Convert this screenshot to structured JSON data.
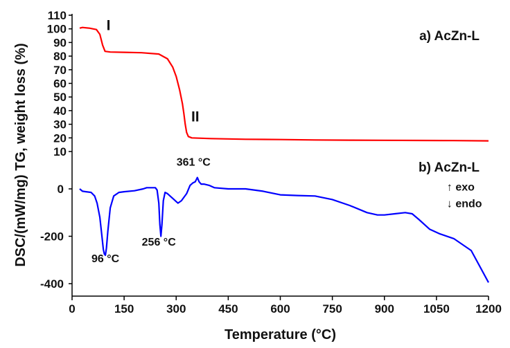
{
  "chart_data": {
    "type": "line",
    "xlabel": "Temperature (°C)",
    "ylabel": "DSC/(mW/mg) TG, weight loss (%)",
    "xlim": [
      0,
      1200
    ],
    "x_ticks": [
      "0",
      "150",
      "300",
      "450",
      "600",
      "750",
      "900",
      "1050",
      "1200"
    ],
    "grid": false,
    "tg": {
      "label": "a) AcZn-L",
      "color": "#ff0000",
      "ylim": [
        10,
        110
      ],
      "y_ticks": [
        "110",
        "100",
        "90",
        "80",
        "70",
        "60",
        "50",
        "40",
        "30",
        "20",
        "10"
      ],
      "x": [
        22,
        30,
        50,
        70,
        80,
        88,
        95,
        110,
        150,
        200,
        250,
        275,
        290,
        300,
        310,
        318,
        322,
        326,
        330,
        335,
        345,
        400,
        500,
        600,
        700,
        800,
        900,
        1000,
        1100,
        1200
      ],
      "y": [
        100.5,
        101,
        100.5,
        99.5,
        96,
        88,
        83.5,
        83,
        82.8,
        82.5,
        81.5,
        78,
        72,
        65,
        55,
        45,
        38,
        30,
        24,
        21,
        20,
        19.5,
        19,
        18.8,
        18.5,
        18.3,
        18.2,
        18.1,
        18,
        17.8
      ],
      "annotations": [
        {
          "text": "I",
          "x": 105,
          "y": 99
        },
        {
          "text": "II",
          "x": 355,
          "y": 32
        }
      ]
    },
    "dsc": {
      "label": "b) AcZn-L",
      "color": "#0000ff",
      "ylim": [
        -410,
        60
      ],
      "y_ticks": [
        "0",
        "-200",
        "-400"
      ],
      "x": [
        22,
        30,
        40,
        55,
        65,
        72,
        80,
        86,
        90,
        93,
        96,
        99,
        103,
        110,
        120,
        135,
        150,
        180,
        205,
        215,
        230,
        240,
        245,
        250,
        253,
        256,
        259,
        263,
        268,
        275,
        290,
        305,
        315,
        330,
        340,
        348,
        355,
        361,
        366,
        372,
        380,
        395,
        410,
        450,
        500,
        550,
        600,
        650,
        700,
        750,
        800,
        850,
        880,
        900,
        930,
        960,
        980,
        1000,
        1030,
        1060,
        1100,
        1150,
        1200
      ],
      "y": [
        0,
        -10,
        -12,
        -15,
        -30,
        -60,
        -120,
        -200,
        -255,
        -275,
        -280,
        -250,
        -180,
        -80,
        -30,
        -15,
        -12,
        -8,
        0,
        5,
        5,
        5,
        -5,
        -60,
        -150,
        -200,
        -150,
        -50,
        -15,
        -20,
        -40,
        -60,
        -50,
        -20,
        15,
        25,
        30,
        48,
        30,
        20,
        20,
        15,
        5,
        0,
        0,
        -10,
        -25,
        -28,
        -30,
        -45,
        -70,
        -100,
        -110,
        -110,
        -105,
        -100,
        -105,
        -130,
        -170,
        -190,
        -210,
        -260,
        -395
      ],
      "annotations": [
        {
          "text": "96 °C",
          "x": 96,
          "y": -310
        },
        {
          "text": "256 °C",
          "x": 250,
          "y": -240
        },
        {
          "text": "361 °C",
          "x": 350,
          "y": 98
        },
        {
          "text": "↑ exo",
          "x": 1080,
          "y": -8
        },
        {
          "text": "↓ endo",
          "x": 1080,
          "y": -78
        }
      ]
    }
  }
}
